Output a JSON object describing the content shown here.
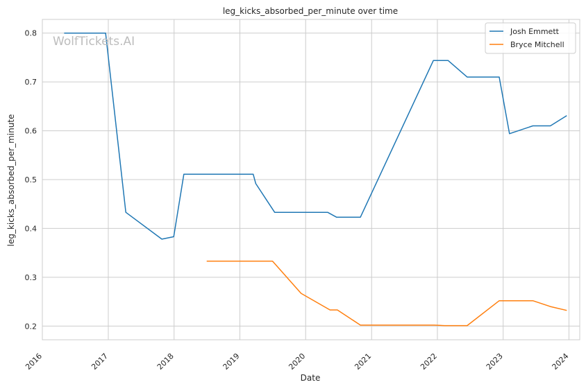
{
  "chart_data": {
    "type": "line",
    "title": "leg_kicks_absorbed_per_minute over time",
    "xlabel": "Date",
    "ylabel": "leg_kicks_absorbed_per_minute",
    "watermark": "WolfTickets.AI",
    "xlim": [
      "2016-01-01",
      "2024-03-01"
    ],
    "ylim": [
      0.172,
      0.828
    ],
    "x_ticks": [
      "2016",
      "2017",
      "2018",
      "2019",
      "2020",
      "2021",
      "2022",
      "2023",
      "2024"
    ],
    "y_ticks": [
      "0.2",
      "0.3",
      "0.4",
      "0.5",
      "0.6",
      "0.7",
      "0.8"
    ],
    "grid": true,
    "legend_position": "top-right",
    "series": [
      {
        "name": "Josh Emmett",
        "color": "#1f77b4",
        "points": [
          [
            "2016-05-01",
            0.8
          ],
          [
            "2016-12-17",
            0.8
          ],
          [
            "2017-04-08",
            0.433
          ],
          [
            "2017-10-25",
            0.378
          ],
          [
            "2017-12-30",
            0.383
          ],
          [
            "2018-02-24",
            0.511
          ],
          [
            "2019-03-16",
            0.511
          ],
          [
            "2019-03-30",
            0.492
          ],
          [
            "2019-07-13",
            0.433
          ],
          [
            "2020-05-02",
            0.433
          ],
          [
            "2020-06-20",
            0.423
          ],
          [
            "2020-10-31",
            0.423
          ],
          [
            "2021-12-10",
            0.744
          ],
          [
            "2022-03-01",
            0.744
          ],
          [
            "2022-06-15",
            0.71
          ],
          [
            "2022-12-10",
            0.71
          ],
          [
            "2023-02-05",
            0.594
          ],
          [
            "2023-06-15",
            0.61
          ],
          [
            "2023-09-20",
            0.61
          ],
          [
            "2023-12-20",
            0.631
          ]
        ]
      },
      {
        "name": "Bryce Mitchell",
        "color": "#ff7f0e",
        "points": [
          [
            "2018-07-01",
            0.333
          ],
          [
            "2019-07-01",
            0.333
          ],
          [
            "2019-12-07",
            0.267
          ],
          [
            "2020-05-15",
            0.233
          ],
          [
            "2020-06-25",
            0.233
          ],
          [
            "2020-10-31",
            0.202
          ],
          [
            "2021-12-15",
            0.202
          ],
          [
            "2022-02-10",
            0.201
          ],
          [
            "2022-06-15",
            0.201
          ],
          [
            "2022-12-10",
            0.252
          ],
          [
            "2023-06-15",
            0.252
          ],
          [
            "2023-09-20",
            0.24
          ],
          [
            "2023-12-20",
            0.232
          ]
        ]
      }
    ]
  }
}
